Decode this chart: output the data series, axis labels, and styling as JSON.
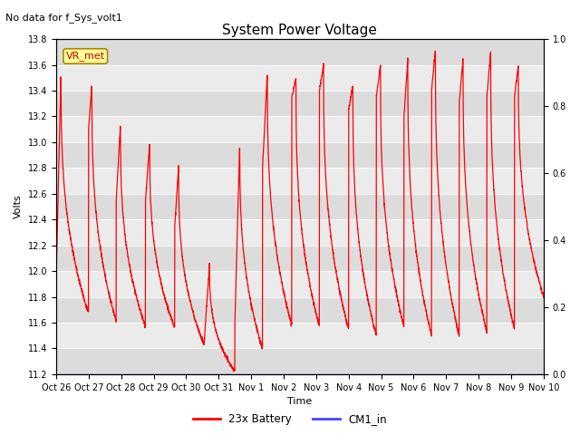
{
  "title": "System Power Voltage",
  "subtitle": "No data for f_Sys_volt1",
  "ylabel_left": "Volts",
  "xlabel": "Time",
  "ylim_left": [
    11.2,
    13.8
  ],
  "ylim_right": [
    0.0,
    1.0
  ],
  "yticks_left": [
    11.2,
    11.4,
    11.6,
    11.8,
    12.0,
    12.2,
    12.4,
    12.6,
    12.8,
    13.0,
    13.2,
    13.4,
    13.6,
    13.8
  ],
  "yticks_right": [
    0.0,
    0.2,
    0.4,
    0.6,
    0.8,
    1.0
  ],
  "xtick_labels": [
    "Oct 26",
    "Oct 27",
    "Oct 28",
    "Oct 29",
    "Oct 30",
    "Oct 31",
    "Nov 1",
    "Nov 2",
    "Nov 3",
    "Nov 4",
    "Nov 5",
    "Nov 6",
    "Nov 7",
    "Nov 8",
    "Nov 9",
    "Nov 10"
  ],
  "line_color_battery": "#FF0000",
  "line_color_cm1": "#4444FF",
  "annotation_text": "VR_met",
  "annotation_color": "#CC0000",
  "annotation_bg": "#FFFF99",
  "annotation_edge": "#AA8800",
  "bg_dark": "#DCDCDC",
  "bg_light": "#EBEBEB",
  "legend_battery": "23x Battery",
  "legend_cm1": "CM1_in",
  "title_fontsize": 11,
  "subtitle_fontsize": 8,
  "axis_fontsize": 8,
  "tick_fontsize": 7
}
